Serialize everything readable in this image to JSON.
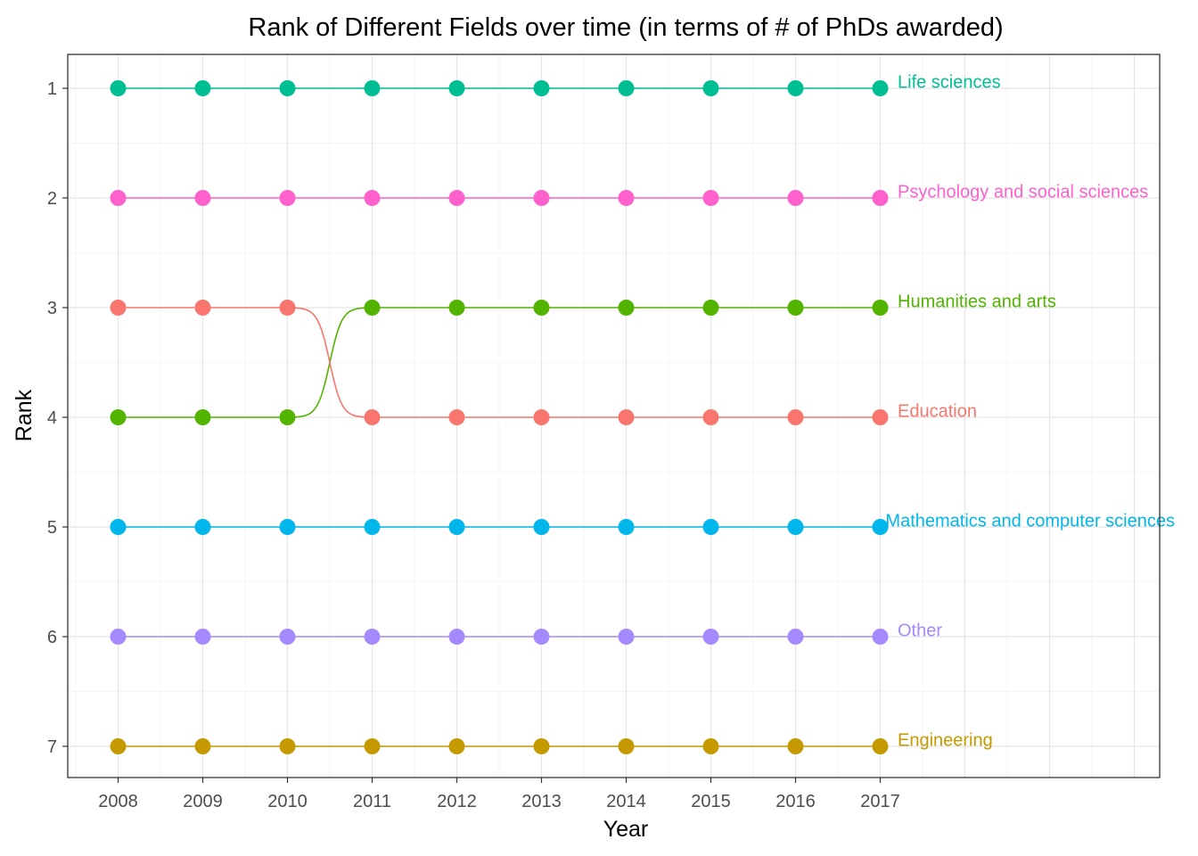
{
  "chart_data": {
    "type": "line",
    "title": "Rank of Different Fields over time (in terms of # of PhDs awarded)",
    "xlabel": "Year",
    "ylabel": "Rank",
    "x": [
      2008,
      2009,
      2010,
      2011,
      2012,
      2013,
      2014,
      2015,
      2016,
      2017
    ],
    "x_tick_labels": [
      "2008",
      "2009",
      "2010",
      "2011",
      "2012",
      "2013",
      "2014",
      "2015",
      "2016",
      "2017"
    ],
    "y_tick_labels": [
      "1",
      "2",
      "3",
      "4",
      "5",
      "6",
      "7"
    ],
    "y_reversed": true,
    "ylim": [
      1,
      7
    ],
    "grid": true,
    "legend": "direct labels at right end of each line",
    "series": [
      {
        "name": "Life sciences",
        "color": "#00BE94",
        "values": [
          1,
          1,
          1,
          1,
          1,
          1,
          1,
          1,
          1,
          1
        ]
      },
      {
        "name": "Psychology and social sciences",
        "color": "#FF61CC",
        "values": [
          2,
          2,
          2,
          2,
          2,
          2,
          2,
          2,
          2,
          2
        ]
      },
      {
        "name": "Humanities and arts",
        "color": "#53B400",
        "values": [
          4,
          4,
          4,
          3,
          3,
          3,
          3,
          3,
          3,
          3
        ]
      },
      {
        "name": "Education",
        "color": "#F8766D",
        "values": [
          3,
          3,
          3,
          4,
          4,
          4,
          4,
          4,
          4,
          4
        ]
      },
      {
        "name": "Mathematics and computer sciences",
        "color": "#00B6EB",
        "values": [
          5,
          5,
          5,
          5,
          5,
          5,
          5,
          5,
          5,
          5
        ]
      },
      {
        "name": "Other",
        "color": "#A58AFF",
        "values": [
          6,
          6,
          6,
          6,
          6,
          6,
          6,
          6,
          6,
          6
        ]
      },
      {
        "name": "Engineering",
        "color": "#C49A00",
        "values": [
          7,
          7,
          7,
          7,
          7,
          7,
          7,
          7,
          7,
          7
        ]
      }
    ]
  }
}
